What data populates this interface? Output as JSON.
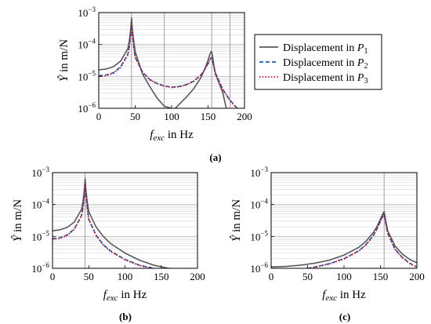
{
  "figure": {
    "panels": [
      {
        "id": "a",
        "caption": "(a)"
      },
      {
        "id": "b",
        "caption": "(b)"
      },
      {
        "id": "c",
        "caption": "(c)"
      }
    ],
    "legend": [
      "Displacement in P1",
      "Displacement in P2",
      "Displacement in P3"
    ],
    "colors": {
      "P1": "#595959",
      "P2": "#1f5fb4",
      "P3": "#b0102a",
      "grid": "#c8c8c8"
    }
  },
  "chart_data": [
    {
      "type": "line",
      "panel": "a",
      "xlabel": "f_exc in Hz",
      "ylabel": "Ŷ in m/N",
      "xlim": [
        0,
        200
      ],
      "ylim": [
        1e-06,
        0.001
      ],
      "yscale": "log",
      "xticks": [
        0,
        50,
        100,
        150,
        200
      ],
      "yticks": [
        1e-06,
        1e-05,
        0.0001,
        0.001
      ],
      "ytick_labels": [
        "10^-6",
        "10^-5",
        "10^-4",
        "10^-3"
      ],
      "grid": true,
      "legend_position": "right",
      "vlines": [
        45,
        90,
        155,
        180
      ],
      "series": [
        {
          "name": "Displacement in P1",
          "style": "solid",
          "x": [
            0,
            10,
            20,
            30,
            40,
            42,
            44,
            45,
            46,
            48,
            50,
            60,
            70,
            80,
            90,
            100,
            103,
            110,
            120,
            130,
            140,
            145,
            150,
            152,
            154,
            155,
            156,
            158,
            160,
            170,
            175
          ],
          "y": [
            1.6e-05,
            1.7e-05,
            2e-05,
            3e-05,
            7.5e-05,
            0.00013,
            0.00032,
            0.00068,
            0.00032,
            0.00013,
            6e-05,
            1.2e-05,
            4.8e-06,
            2.1e-06,
            1.15e-06,
            1e-06,
            9e-07,
            1.3e-06,
            2.2e-06,
            4e-06,
            9e-06,
            1.6e-05,
            3.2e-05,
            4.5e-05,
            5.8e-05,
            6e-05,
            4.5e-05,
            2.2e-05,
            1.2e-05,
            3.2e-06,
            1e-06
          ]
        },
        {
          "name": "Displacement in P2",
          "style": "dashed",
          "x": [
            0,
            10,
            20,
            30,
            40,
            42,
            44,
            45,
            46,
            48,
            50,
            60,
            70,
            80,
            90,
            100,
            110,
            120,
            130,
            140,
            145,
            150,
            152,
            154,
            155,
            156,
            158,
            160,
            170,
            180,
            190
          ],
          "y": [
            1.05e-05,
            1.1e-05,
            1.3e-05,
            2e-05,
            5e-05,
            9e-05,
            0.00023,
            0.0005,
            0.00023,
            9e-05,
            4e-05,
            1.4e-05,
            8e-06,
            6e-06,
            5e-06,
            4.6e-06,
            4.8e-06,
            5.5e-06,
            7e-06,
            1.1e-05,
            1.6e-05,
            2.5e-05,
            3.2e-05,
            3.8e-05,
            3.9e-05,
            3.2e-05,
            2e-05,
            1.3e-05,
            4e-06,
            1.8e-06,
            1e-06
          ]
        },
        {
          "name": "Displacement in P3",
          "style": "dotted",
          "x": [
            0,
            10,
            20,
            30,
            40,
            42,
            44,
            45,
            46,
            48,
            50,
            60,
            70,
            80,
            90,
            100,
            110,
            120,
            130,
            140,
            145,
            150,
            152,
            154,
            155,
            156,
            158,
            160,
            170,
            180,
            190
          ],
          "y": [
            1e-05,
            1.05e-05,
            1.25e-05,
            1.9e-05,
            4.8e-05,
            8.8e-05,
            0.000225,
            0.00049,
            0.000225,
            8.8e-05,
            3.9e-05,
            1.35e-05,
            7.8e-06,
            5.9e-06,
            4.9e-06,
            4.5e-06,
            4.7e-06,
            5.4e-06,
            6.9e-06,
            1.08e-05,
            1.58e-05,
            2.45e-05,
            3.15e-05,
            3.75e-05,
            3.85e-05,
            3.15e-05,
            1.95e-05,
            1.25e-05,
            3.9e-06,
            1.75e-06,
            9.8e-07
          ]
        }
      ]
    },
    {
      "type": "line",
      "panel": "b",
      "xlabel": "f_exc in Hz",
      "ylabel": "Ŷ in m/N",
      "xlim": [
        0,
        200
      ],
      "ylim": [
        1e-06,
        0.001
      ],
      "yscale": "log",
      "xticks": [
        0,
        50,
        100,
        150,
        200
      ],
      "yticks": [
        1e-06,
        1e-05,
        0.0001,
        0.001
      ],
      "ytick_labels": [
        "10^-6",
        "10^-5",
        "10^-4",
        "10^-3"
      ],
      "grid": true,
      "vlines": [
        45
      ],
      "series": [
        {
          "name": "Displacement in P1",
          "style": "solid",
          "x": [
            0,
            10,
            20,
            30,
            40,
            42,
            44,
            45,
            46,
            48,
            50,
            60,
            70,
            80,
            100,
            120,
            140,
            160,
            170
          ],
          "y": [
            1.5e-05,
            1.6e-05,
            1.9e-05,
            2.8e-05,
            7e-05,
            0.00012,
            0.0003,
            0.00065,
            0.0003,
            0.00012,
            6e-05,
            2e-05,
            1e-05,
            6e-06,
            3e-06,
            1.8e-06,
            1.25e-06,
            1e-06,
            9.5e-07
          ]
        },
        {
          "name": "Displacement in P2",
          "style": "dashed",
          "x": [
            0,
            10,
            20,
            30,
            40,
            42,
            44,
            45,
            46,
            48,
            50,
            60,
            70,
            80,
            100,
            120,
            140,
            150
          ],
          "y": [
            8.5e-06,
            9e-06,
            1.1e-05,
            1.7e-05,
            4.5e-05,
            8e-05,
            0.0002,
            0.00045,
            0.0002,
            8e-05,
            3.5e-05,
            1.1e-05,
            5.5e-06,
            3.5e-06,
            1.9e-06,
            1.25e-06,
            1e-06,
            9.5e-07
          ]
        },
        {
          "name": "Displacement in P3",
          "style": "dotted",
          "x": [
            0,
            10,
            20,
            30,
            40,
            42,
            44,
            45,
            46,
            48,
            50,
            60,
            70,
            80,
            100,
            120,
            140,
            150
          ],
          "y": [
            8.2e-06,
            8.7e-06,
            1.07e-05,
            1.65e-05,
            4.4e-05,
            7.8e-05,
            0.000195,
            0.00044,
            0.000195,
            7.8e-05,
            3.4e-05,
            1.08e-05,
            5.4e-06,
            3.4e-06,
            1.85e-06,
            1.22e-06,
            9.8e-07,
            9.3e-07
          ]
        }
      ]
    },
    {
      "type": "line",
      "panel": "c",
      "xlabel": "f_exc in Hz",
      "ylabel": "Ŷ in m/N",
      "xlim": [
        0,
        200
      ],
      "ylim": [
        1e-06,
        0.001
      ],
      "yscale": "log",
      "xticks": [
        0,
        50,
        100,
        150,
        200
      ],
      "yticks": [
        1e-06,
        1e-05,
        0.0001,
        0.001
      ],
      "ytick_labels": [
        "10^-6",
        "10^-5",
        "10^-4",
        "10^-3"
      ],
      "grid": true,
      "vlines": [
        155
      ],
      "series": [
        {
          "name": "Displacement in P1",
          "style": "solid",
          "x": [
            0,
            20,
            40,
            60,
            80,
            100,
            120,
            130,
            140,
            145,
            150,
            152,
            154,
            155,
            156,
            158,
            160,
            170,
            180,
            190,
            200
          ],
          "y": [
            1.1e-06,
            1.15e-06,
            1.25e-06,
            1.45e-06,
            1.8e-06,
            2.6e-06,
            4.5e-06,
            7e-06,
            1.3e-05,
            2e-05,
            3.5e-05,
            4.5e-05,
            5.5e-05,
            6e-05,
            4.5e-05,
            2.5e-05,
            1.5e-05,
            5e-06,
            2.8e-06,
            1.9e-06,
            1.5e-06
          ]
        },
        {
          "name": "Displacement in P2",
          "style": "dashed",
          "x": [
            50,
            60,
            80,
            100,
            120,
            130,
            140,
            145,
            150,
            152,
            154,
            155,
            156,
            158,
            160,
            170,
            180,
            190,
            200
          ],
          "y": [
            1e-06,
            1.1e-06,
            1.4e-06,
            2e-06,
            3.5e-06,
            5.5e-06,
            1.05e-05,
            1.7e-05,
            3e-05,
            3.8e-05,
            4.6e-05,
            5e-05,
            3.8e-05,
            2.1e-05,
            1.25e-05,
            4e-06,
            2.2e-06,
            1.45e-06,
            1.1e-06
          ]
        },
        {
          "name": "Displacement in P3",
          "style": "dotted",
          "x": [
            50,
            60,
            80,
            100,
            120,
            130,
            140,
            145,
            150,
            152,
            154,
            155,
            156,
            158,
            160,
            170,
            180,
            190,
            200
          ],
          "y": [
            9.8e-07,
            1.08e-06,
            1.38e-06,
            1.97e-06,
            3.45e-06,
            5.4e-06,
            1.03e-05,
            1.67e-05,
            2.95e-05,
            3.75e-05,
            4.55e-05,
            4.9e-05,
            3.75e-05,
            2.05e-05,
            1.22e-05,
            3.9e-06,
            2.15e-06,
            1.42e-06,
            1.08e-06
          ]
        }
      ]
    }
  ]
}
